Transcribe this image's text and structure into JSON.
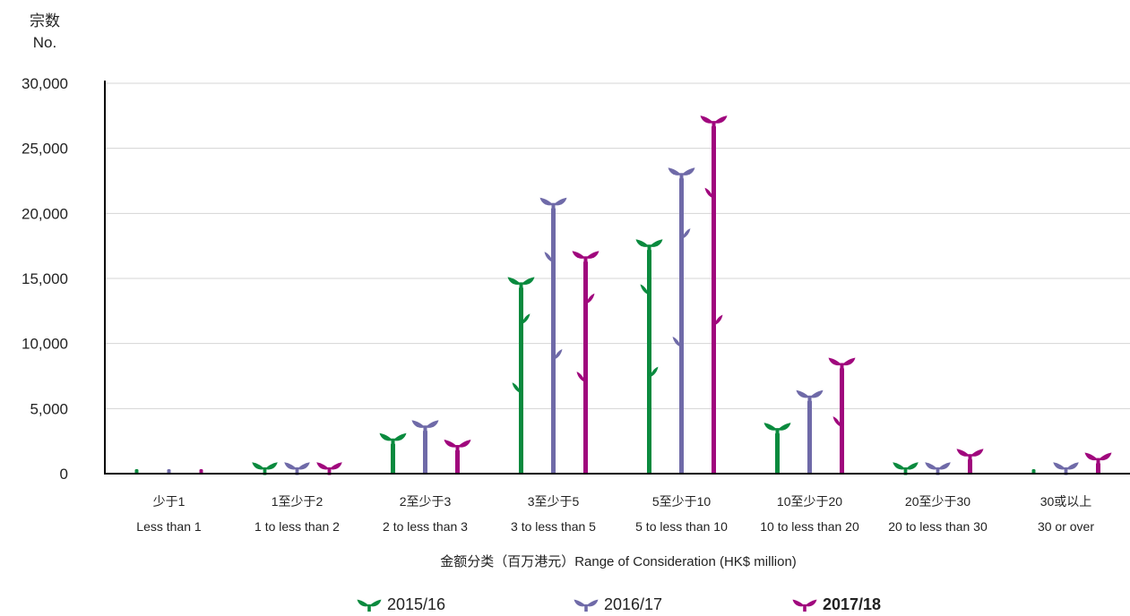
{
  "colors": {
    "2015/16": "#0a8a3e",
    "2016/17": "#6f6aa8",
    "2017/18": "#a0077d"
  },
  "chart_data": {
    "type": "bar",
    "ylabel": "宗数\nNo.",
    "ylabel_cn": "宗数",
    "ylabel_en": "No.",
    "xlabel": "金额分类（百万港元）Range of Consideration (HK$ million)",
    "ylim": [
      0,
      30000
    ],
    "yticks": [
      "0",
      "5,000",
      "10,000",
      "15,000",
      "20,000",
      "25,000",
      "30,000"
    ],
    "grid": true,
    "legend_position": "bottom",
    "categories": [
      {
        "cn": "少于1",
        "en": "Less than 1"
      },
      {
        "cn": "1至少于2",
        "en": "1 to less than 2"
      },
      {
        "cn": "2至少于3",
        "en": "2 to less than 3"
      },
      {
        "cn": "3至少于5",
        "en": "3 to less than 5"
      },
      {
        "cn": "5至少于10",
        "en": "5 to less than 10"
      },
      {
        "cn": "10至少于20",
        "en": "10 to less than 20"
      },
      {
        "cn": "20至少于30",
        "en": "20 to less than 30"
      },
      {
        "cn": "30或以上",
        "en": "30 or over"
      }
    ],
    "series": [
      {
        "name": "2015/16",
        "values": [
          150,
          600,
          2700,
          14700,
          17600,
          3500,
          300,
          250
        ]
      },
      {
        "name": "2016/17",
        "values": [
          100,
          700,
          3700,
          20800,
          23100,
          6000,
          800,
          700
        ]
      },
      {
        "name": "2017/18",
        "values": [
          100,
          400,
          2200,
          16700,
          27100,
          8500,
          1500,
          1200
        ]
      }
    ]
  }
}
